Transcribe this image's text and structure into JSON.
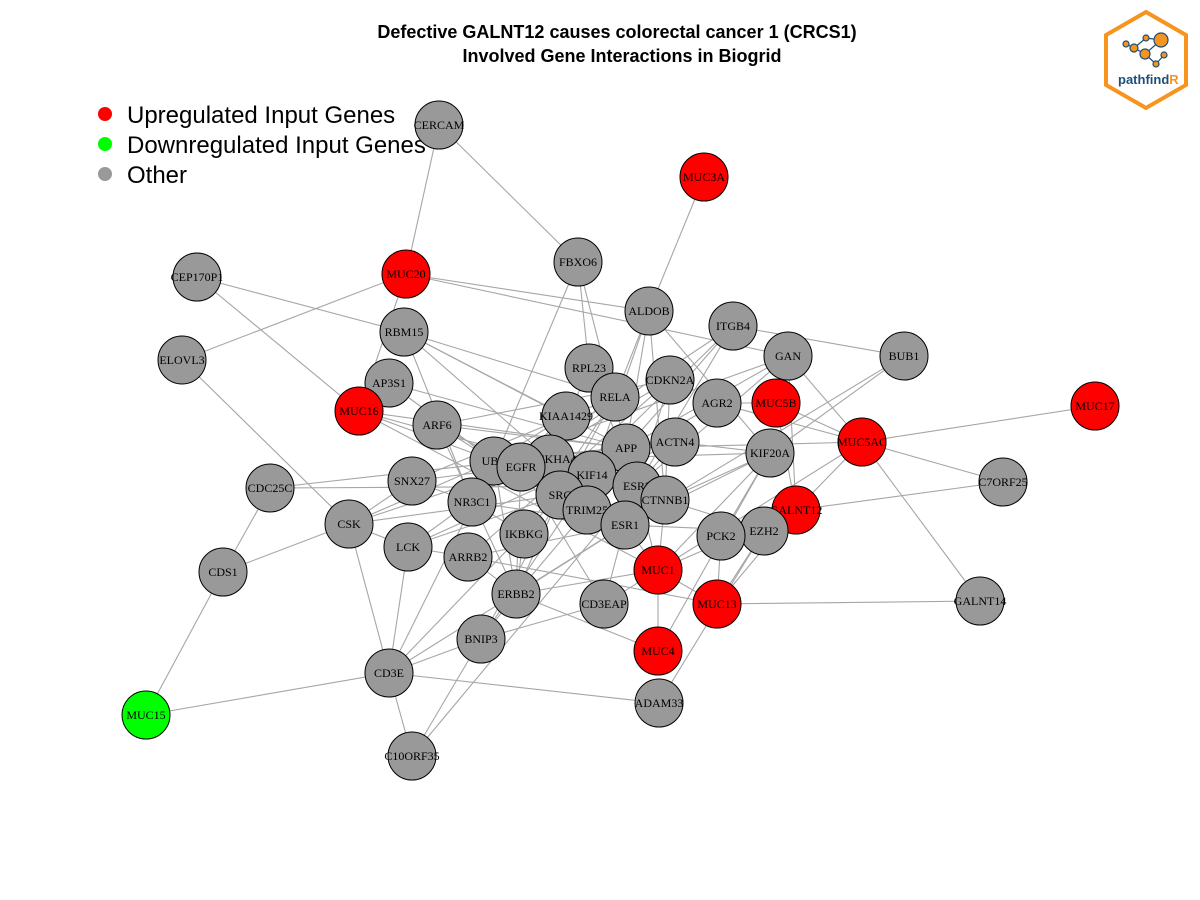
{
  "title": {
    "line1": "Defective GALNT12 causes colorectal cancer 1 (CRCS1)",
    "line2": "Involved Gene Interactions in Biogrid"
  },
  "legend": [
    {
      "label": "Upregulated Input Genes",
      "color": "#ff0000"
    },
    {
      "label": "Downregulated Input Genes",
      "color": "#00ff00"
    },
    {
      "label": "Other",
      "color": "#999999"
    }
  ],
  "logo": {
    "text_main": "pathfind",
    "text_accent": "R",
    "border_color": "#f7941d",
    "node_color": "#f7941d",
    "text_color": "#1f4e79"
  },
  "colors": {
    "up": "#ff0000",
    "down": "#00ff00",
    "other": "#999999",
    "edge": "#a6a6a6"
  },
  "nodes": [
    {
      "id": "CERCAM",
      "type": "other"
    },
    {
      "id": "MUC3A",
      "type": "up"
    },
    {
      "id": "CEP170P1",
      "type": "other"
    },
    {
      "id": "MUC20",
      "type": "up"
    },
    {
      "id": "FBXO6",
      "type": "other"
    },
    {
      "id": "ALDOB",
      "type": "other"
    },
    {
      "id": "ITGB4",
      "type": "other"
    },
    {
      "id": "RBM15",
      "type": "other"
    },
    {
      "id": "GAN",
      "type": "other"
    },
    {
      "id": "BUB1",
      "type": "other"
    },
    {
      "id": "ELOVL3",
      "type": "other"
    },
    {
      "id": "RPL23",
      "type": "other"
    },
    {
      "id": "AP3S1",
      "type": "other"
    },
    {
      "id": "CDKN2A",
      "type": "other"
    },
    {
      "id": "RELA",
      "type": "other"
    },
    {
      "id": "MUC16",
      "type": "up"
    },
    {
      "id": "AGR2",
      "type": "other"
    },
    {
      "id": "MUC5B",
      "type": "up"
    },
    {
      "id": "MUC17",
      "type": "up"
    },
    {
      "id": "KIAA1429",
      "type": "other"
    },
    {
      "id": "ARF6",
      "type": "other"
    },
    {
      "id": "ACTN4",
      "type": "other"
    },
    {
      "id": "MUC5AC",
      "type": "up"
    },
    {
      "id": "APP",
      "type": "other"
    },
    {
      "id": "KIF20A",
      "type": "other"
    },
    {
      "id": "UBC",
      "type": "other"
    },
    {
      "id": "PLEKHA4",
      "type": "other"
    },
    {
      "id": "EGFR",
      "type": "other"
    },
    {
      "id": "C7ORF25",
      "type": "other"
    },
    {
      "id": "CDC25C",
      "type": "other"
    },
    {
      "id": "SNX27",
      "type": "other"
    },
    {
      "id": "KIF14",
      "type": "other"
    },
    {
      "id": "ESR2",
      "type": "other"
    },
    {
      "id": "NR3C1",
      "type": "other"
    },
    {
      "id": "SRC",
      "type": "other"
    },
    {
      "id": "CTNNB1",
      "type": "other"
    },
    {
      "id": "GALNT12",
      "type": "up"
    },
    {
      "id": "TRIM25",
      "type": "other"
    },
    {
      "id": "CSK",
      "type": "other"
    },
    {
      "id": "ESR1",
      "type": "other"
    },
    {
      "id": "EZH2",
      "type": "other"
    },
    {
      "id": "IKBKG",
      "type": "other"
    },
    {
      "id": "PCK2",
      "type": "other"
    },
    {
      "id": "LCK",
      "type": "other"
    },
    {
      "id": "ARRB2",
      "type": "other"
    },
    {
      "id": "CDS1",
      "type": "other"
    },
    {
      "id": "MUC1",
      "type": "up"
    },
    {
      "id": "ERBB2",
      "type": "other"
    },
    {
      "id": "MUC13",
      "type": "up"
    },
    {
      "id": "CD3EAP",
      "type": "other"
    },
    {
      "id": "GALNT14",
      "type": "other"
    },
    {
      "id": "BNIP3",
      "type": "other"
    },
    {
      "id": "MUC4",
      "type": "up"
    },
    {
      "id": "CD3E",
      "type": "other"
    },
    {
      "id": "ADAM33",
      "type": "other"
    },
    {
      "id": "MUC15",
      "type": "down"
    },
    {
      "id": "C10ORF35",
      "type": "other"
    }
  ],
  "edges": [
    [
      "CERCAM",
      "MUC20"
    ],
    [
      "CERCAM",
      "FBXO6"
    ],
    [
      "MUC3A",
      "ALDOB"
    ],
    [
      "CEP170P1",
      "MUC16"
    ],
    [
      "CEP170P1",
      "RBM15"
    ],
    [
      "MUC20",
      "ELOVL3"
    ],
    [
      "MUC20",
      "ALDOB"
    ],
    [
      "MUC20",
      "GAN"
    ],
    [
      "MUC20",
      "MUC16"
    ],
    [
      "FBXO6",
      "RPL23"
    ],
    [
      "FBXO6",
      "UBC"
    ],
    [
      "FBXO6",
      "APP"
    ],
    [
      "ALDOB",
      "RELA"
    ],
    [
      "ALDOB",
      "APP"
    ],
    [
      "ALDOB",
      "KIF14"
    ],
    [
      "ALDOB",
      "CTNNB1"
    ],
    [
      "ALDOB",
      "KIF20A"
    ],
    [
      "ITGB4",
      "BUB1"
    ],
    [
      "ITGB4",
      "APP"
    ],
    [
      "ITGB4",
      "EGFR"
    ],
    [
      "ITGB4",
      "ESR2"
    ],
    [
      "ITGB4",
      "SRC"
    ],
    [
      "RBM15",
      "KIAA1429"
    ],
    [
      "RBM15",
      "RELA"
    ],
    [
      "RBM15",
      "ESR1"
    ],
    [
      "RBM15",
      "APP"
    ],
    [
      "RBM15",
      "NR3C1"
    ],
    [
      "GAN",
      "MUC5AC"
    ],
    [
      "GAN",
      "UBC"
    ],
    [
      "GAN",
      "APP"
    ],
    [
      "GAN",
      "GALNT12"
    ],
    [
      "GAN",
      "ESR2"
    ],
    [
      "BUB1",
      "KIF20A"
    ],
    [
      "BUB1",
      "ESR1"
    ],
    [
      "ELOVL3",
      "CSK"
    ],
    [
      "RPL23",
      "ESR2"
    ],
    [
      "RPL23",
      "PLEKHA4"
    ],
    [
      "AP3S1",
      "APP"
    ],
    [
      "AP3S1",
      "UBC"
    ],
    [
      "CDKN2A",
      "ARF6"
    ],
    [
      "CDKN2A",
      "ESR1"
    ],
    [
      "CDKN2A",
      "ARRB2"
    ],
    [
      "CDKN2A",
      "EGFR"
    ],
    [
      "CDKN2A",
      "CTNNB1"
    ],
    [
      "RELA",
      "SNX27"
    ],
    [
      "RELA",
      "SRC"
    ],
    [
      "RELA",
      "IKBKG"
    ],
    [
      "RELA",
      "LCK"
    ],
    [
      "RELA",
      "NR3C1"
    ],
    [
      "MUC16",
      "APP"
    ],
    [
      "MUC16",
      "MUC1"
    ],
    [
      "MUC16",
      "KIF14"
    ],
    [
      "MUC16",
      "UBC"
    ],
    [
      "AGR2",
      "MUC5B"
    ],
    [
      "AGR2",
      "MUC5AC"
    ],
    [
      "AGR2",
      "SRC"
    ],
    [
      "MUC5B",
      "MUC5AC"
    ],
    [
      "MUC5B",
      "GALNT12"
    ],
    [
      "MUC17",
      "MUC5AC"
    ],
    [
      "KIAA1429",
      "UBC"
    ],
    [
      "KIAA1429",
      "NR3C1"
    ],
    [
      "KIAA1429",
      "SRC"
    ],
    [
      "ARF6",
      "UBC"
    ],
    [
      "ARF6",
      "APP"
    ],
    [
      "ARF6",
      "ESR1"
    ],
    [
      "ARF6",
      "ERBB2"
    ],
    [
      "ACTN4",
      "ESR2"
    ],
    [
      "ACTN4",
      "SRC"
    ],
    [
      "ACTN4",
      "UBC"
    ],
    [
      "ACTN4",
      "KIF20A"
    ],
    [
      "MUC5AC",
      "GALNT12"
    ],
    [
      "MUC5AC",
      "MUC1"
    ],
    [
      "MUC5AC",
      "GALNT14"
    ],
    [
      "MUC5AC",
      "C7ORF25"
    ],
    [
      "MUC5AC",
      "APP"
    ],
    [
      "APP",
      "UBC"
    ],
    [
      "APP",
      "SRC"
    ],
    [
      "APP",
      "ESR1"
    ],
    [
      "APP",
      "LCK"
    ],
    [
      "APP",
      "TRIM25"
    ],
    [
      "KIF20A",
      "CTNNB1"
    ],
    [
      "KIF20A",
      "ESR1"
    ],
    [
      "KIF20A",
      "MUC1"
    ],
    [
      "KIF20A",
      "UBC"
    ],
    [
      "KIF20A",
      "PCK2"
    ],
    [
      "UBC",
      "ESR2"
    ],
    [
      "UBC",
      "CTNNB1"
    ],
    [
      "UBC",
      "ERBB2"
    ],
    [
      "UBC",
      "CD3E"
    ],
    [
      "UBC",
      "CSK"
    ],
    [
      "UBC",
      "NR3C1"
    ],
    [
      "EGFR",
      "SRC"
    ],
    [
      "EGFR",
      "ERBB2"
    ],
    [
      "EGFR",
      "CSK"
    ],
    [
      "EGFR",
      "CD3EAP"
    ],
    [
      "EGFR",
      "SNX27"
    ],
    [
      "C7ORF25",
      "GALNT12"
    ],
    [
      "CDC25C",
      "CDS1"
    ],
    [
      "CDC25C",
      "APP"
    ],
    [
      "CDC25C",
      "ESR2"
    ],
    [
      "SNX27",
      "CSK"
    ],
    [
      "SNX27",
      "NR3C1"
    ],
    [
      "KIF14",
      "SRC"
    ],
    [
      "KIF14",
      "BNIP3"
    ],
    [
      "ESR2",
      "ESR1"
    ],
    [
      "ESR2",
      "CTNNB1"
    ],
    [
      "ESR2",
      "MUC1"
    ],
    [
      "NR3C1",
      "ESR1"
    ],
    [
      "NR3C1",
      "IKBKG"
    ],
    [
      "SRC",
      "CSK"
    ],
    [
      "SRC",
      "LCK"
    ],
    [
      "SRC",
      "ESR1"
    ],
    [
      "SRC",
      "ERBB2"
    ],
    [
      "SRC",
      "CD3E"
    ],
    [
      "SRC",
      "BNIP3"
    ],
    [
      "CTNNB1",
      "MUC1"
    ],
    [
      "CTNNB1",
      "EZH2"
    ],
    [
      "CTNNB1",
      "ERBB2"
    ],
    [
      "GALNT12",
      "MUC1"
    ],
    [
      "GALNT12",
      "MUC13"
    ],
    [
      "TRIM25",
      "ESR1"
    ],
    [
      "TRIM25",
      "ERBB2"
    ],
    [
      "CSK",
      "LCK"
    ],
    [
      "CSK",
      "CDS1"
    ],
    [
      "CSK",
      "CD3E"
    ],
    [
      "ESR1",
      "MUC1"
    ],
    [
      "ESR1",
      "EZH2"
    ],
    [
      "ESR1",
      "CD3EAP"
    ],
    [
      "ESR1",
      "ARRB2"
    ],
    [
      "EZH2",
      "MUC13"
    ],
    [
      "EZH2",
      "ADAM33"
    ],
    [
      "IKBKG",
      "ERBB2"
    ],
    [
      "PCK2",
      "MUC13"
    ],
    [
      "LCK",
      "CD3E"
    ],
    [
      "LCK",
      "ARRB2"
    ],
    [
      "ARRB2",
      "ERBB2"
    ],
    [
      "ARRB2",
      "MUC13"
    ],
    [
      "CDS1",
      "MUC15"
    ],
    [
      "MUC1",
      "MUC13"
    ],
    [
      "MUC1",
      "MUC4"
    ],
    [
      "MUC1",
      "ERBB2"
    ],
    [
      "MUC1",
      "CD3EAP"
    ],
    [
      "ERBB2",
      "BNIP3"
    ],
    [
      "ERBB2",
      "MUC4"
    ],
    [
      "MUC13",
      "GALNT14"
    ],
    [
      "CD3EAP",
      "BNIP3"
    ],
    [
      "BNIP3",
      "CD3E"
    ],
    [
      "BNIP3",
      "C10ORF35"
    ],
    [
      "MUC4",
      "KIF20A"
    ],
    [
      "CD3E",
      "MUC15"
    ],
    [
      "CD3E",
      "ADAM33"
    ],
    [
      "CD3E",
      "C10ORF35"
    ],
    [
      "CD3E",
      "ESR1"
    ],
    [
      "C10ORF35",
      "ESR2"
    ]
  ]
}
